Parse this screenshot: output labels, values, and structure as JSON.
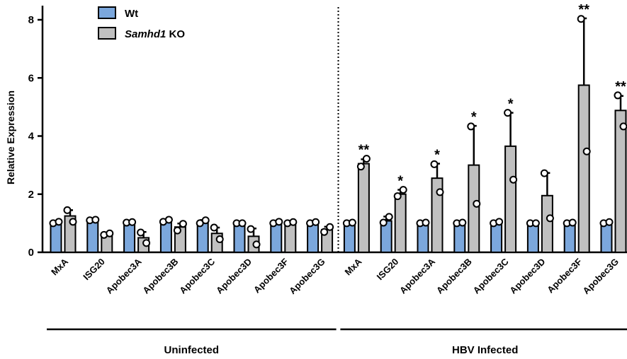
{
  "chart_data": {
    "type": "bar",
    "ylabel": "Relative Expression",
    "ylim": [
      0,
      8.4
    ],
    "yticks": [
      "0",
      "2",
      "4",
      "6",
      "8"
    ],
    "legend": {
      "placement": "top-left",
      "entries": [
        {
          "label_main": "Wt",
          "label_suffix": ""
        },
        {
          "label_main": "Samhd1",
          "label_suffix": " KO"
        }
      ]
    },
    "colors": {
      "wt": "#7ba7dc",
      "ko": "#c0c0c0"
    },
    "groups": [
      {
        "label": "Uninfected",
        "categories": [
          "MxA",
          "ISG20",
          "Apobec3A",
          "Apobec3B",
          "Apobec3C",
          "Apobec3D",
          "Apobec3F",
          "Apobec3G"
        ]
      },
      {
        "label": "HBV Infected",
        "categories": [
          "MxA",
          "ISG20",
          "Apobec3A",
          "Apobec3B",
          "Apobec3C",
          "Apobec3D",
          "Apobec3F",
          "Apobec3G"
        ]
      }
    ],
    "series": [
      {
        "name": "Wt",
        "values": [
          1.02,
          1.08,
          1.02,
          1.08,
          1.05,
          1.0,
          1.02,
          1.02,
          1.02,
          1.08,
          1.02,
          1.02,
          1.02,
          1.0,
          1.0,
          1.02
        ],
        "errors": [
          0.04,
          0.05,
          0.03,
          0.05,
          0.06,
          0.03,
          0.03,
          0.03,
          0.03,
          0.15,
          0.03,
          0.03,
          0.03,
          0.02,
          0.03,
          0.03
        ],
        "points": [
          [
            1.0,
            1.05
          ],
          [
            1.1,
            1.12
          ],
          [
            1.02,
            1.04
          ],
          [
            1.05,
            1.12
          ],
          [
            1.0,
            1.1
          ],
          [
            1.0,
            1.0
          ],
          [
            1.0,
            1.05
          ],
          [
            1.0,
            1.04
          ],
          [
            1.0,
            1.02
          ],
          [
            1.02,
            1.22
          ],
          [
            1.0,
            1.02
          ],
          [
            1.0,
            1.02
          ],
          [
            1.0,
            1.05
          ],
          [
            1.0,
            1.0
          ],
          [
            1.0,
            1.02
          ],
          [
            1.0,
            1.04
          ]
        ]
      },
      {
        "name": "Samhd1 KO",
        "values": [
          1.25,
          0.63,
          0.5,
          0.87,
          0.65,
          0.55,
          1.02,
          0.78,
          3.05,
          2.0,
          2.55,
          3.0,
          3.65,
          1.95,
          5.75,
          4.88
        ],
        "errors": [
          0.2,
          0.03,
          0.2,
          0.12,
          0.2,
          0.27,
          0.03,
          0.1,
          0.15,
          0.15,
          0.5,
          1.35,
          1.15,
          0.78,
          2.3,
          0.5
        ],
        "points": [
          [
            1.45,
            1.05
          ],
          [
            0.6,
            0.65
          ],
          [
            0.68,
            0.32
          ],
          [
            0.75,
            0.98
          ],
          [
            0.85,
            0.45
          ],
          [
            0.8,
            0.27
          ],
          [
            1.0,
            1.04
          ],
          [
            0.7,
            0.87
          ],
          [
            2.95,
            3.22
          ],
          [
            1.93,
            2.15
          ],
          [
            3.03,
            2.07
          ],
          [
            4.33,
            1.67
          ],
          [
            4.8,
            2.5
          ],
          [
            2.72,
            1.17
          ],
          [
            8.03,
            3.47
          ],
          [
            5.4,
            4.33
          ]
        ]
      }
    ],
    "significance": [
      "",
      "",
      "",
      "",
      "",
      "",
      "",
      "",
      "**",
      "*",
      "*",
      "*",
      "*",
      "",
      "**",
      "**"
    ]
  }
}
